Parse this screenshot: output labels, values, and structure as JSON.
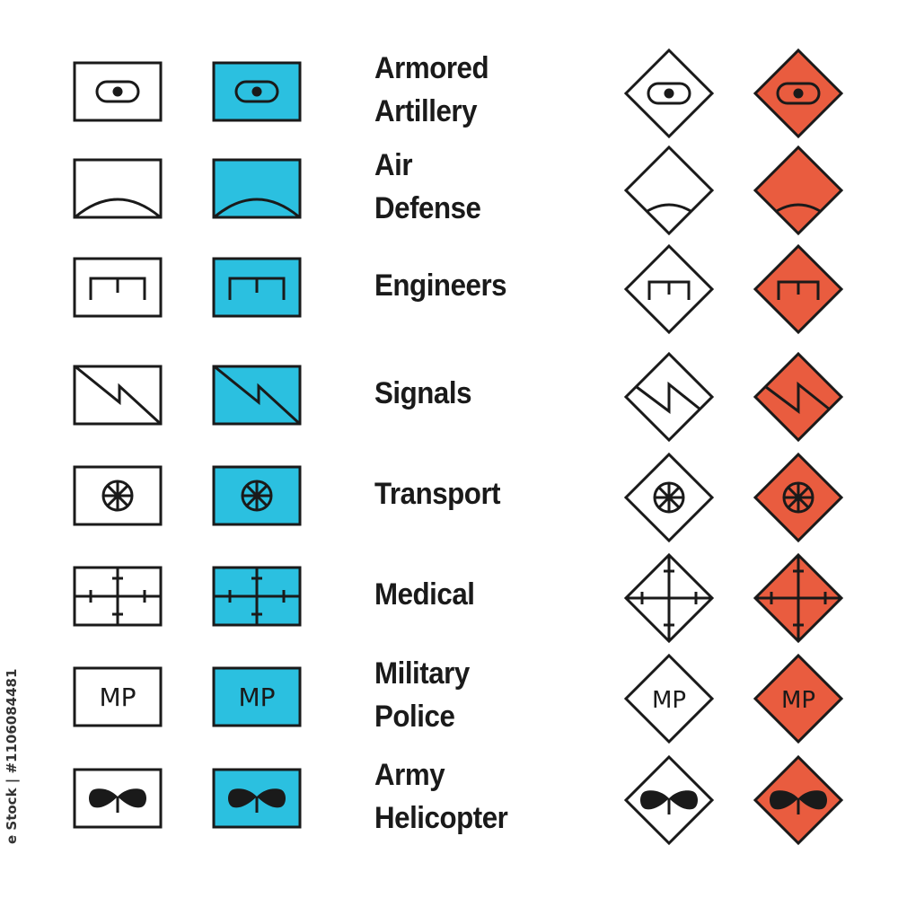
{
  "colors": {
    "stroke": "#1a1a1a",
    "friendly_fill": "#2bc0e0",
    "hostile_fill": "#e95c3f",
    "background": "#ffffff"
  },
  "rows": [
    {
      "label_lines": [
        "Armored",
        "Artillery"
      ],
      "symbol": "armored-artillery"
    },
    {
      "label_lines": [
        "Air",
        "Defense"
      ],
      "symbol": "air-defense"
    },
    {
      "label_lines": [
        "Engineers"
      ],
      "symbol": "engineers"
    },
    {
      "label_lines": [
        "Signals"
      ],
      "symbol": "signals"
    },
    {
      "label_lines": [
        "Transport"
      ],
      "symbol": "transport"
    },
    {
      "label_lines": [
        "Medical"
      ],
      "symbol": "medical"
    },
    {
      "label_lines": [
        "Military",
        "Police"
      ],
      "symbol": "military-police",
      "symbol_text": "MP"
    },
    {
      "label_lines": [
        "Army",
        "Helicopter"
      ],
      "symbol": "army-helicopter"
    }
  ],
  "watermark": "e Stock | #1106084481"
}
